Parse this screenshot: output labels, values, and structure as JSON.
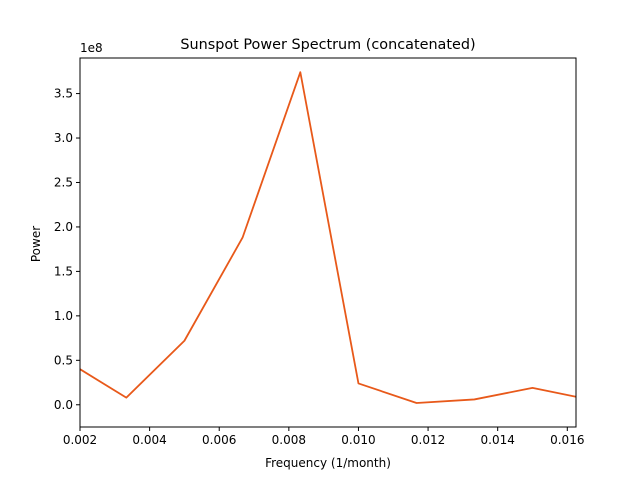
{
  "chart_data": {
    "type": "line",
    "title": "Sunspot Power Spectrum (concatenated)",
    "xlabel": "Frequency (1/month)",
    "ylabel": "Power",
    "y_offset_label": "1e8",
    "y_scale": 100000000,
    "xlim": [
      0.002,
      0.01625
    ],
    "ylim": [
      -0.25,
      3.9
    ],
    "x_ticks": [
      0.002,
      0.004,
      0.006,
      0.008,
      0.01,
      0.012,
      0.014,
      0.016
    ],
    "x_tick_labels": [
      "0.002",
      "0.004",
      "0.006",
      "0.008",
      "0.010",
      "0.012",
      "0.014",
      "0.016"
    ],
    "y_ticks": [
      0.0,
      0.5,
      1.0,
      1.5,
      2.0,
      2.5,
      3.0,
      3.5
    ],
    "y_tick_labels": [
      "0.0",
      "0.5",
      "1.0",
      "1.5",
      "2.0",
      "2.5",
      "3.0",
      "3.5"
    ],
    "grid": false,
    "series": [
      {
        "color": "#e8591a",
        "x": [
          0.002,
          0.00333,
          0.005,
          0.00667,
          0.00833,
          0.01,
          0.01167,
          0.01333,
          0.015,
          0.01625
        ],
        "y": [
          0.4,
          0.08,
          0.72,
          1.88,
          3.74,
          0.24,
          0.02,
          0.06,
          0.19,
          0.09
        ]
      }
    ]
  }
}
